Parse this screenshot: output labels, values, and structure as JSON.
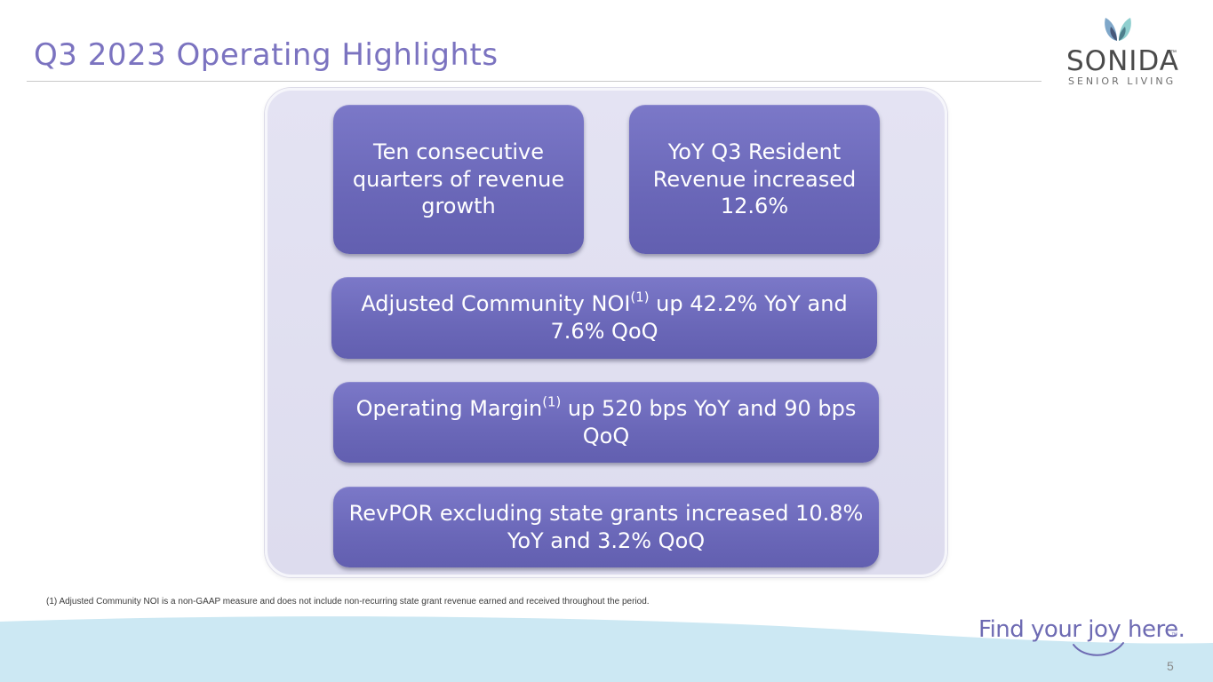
{
  "slide": {
    "title": "Q3 2023 Operating Highlights",
    "page_number": "5"
  },
  "logo": {
    "wordmark": "SONIDA",
    "trademark": "™",
    "subtitle": "SENIOR LIVING",
    "mark_icon": "butterfly-icon",
    "colors": {
      "left_wing": "#7fa7c9",
      "right_wing": "#8fcfcf",
      "body": "#3d4a6b"
    }
  },
  "highlights": {
    "box_a": "Ten consecutive quarters of revenue growth",
    "box_b": "YoY Q3 Resident Revenue increased 12.6%",
    "box_c": {
      "before": "Adjusted Community NOI",
      "sup": "(1)",
      "after": " up 42.2% YoY and 7.6%  QoQ"
    },
    "box_d": {
      "before": "Operating Margin",
      "sup": "(1)",
      "after": " up 520 bps YoY and 90 bps QoQ"
    },
    "box_e": "RevPOR excluding state grants increased 10.8% YoY and 3.2% QoQ"
  },
  "footnote": "(1) Adjusted Community NOI is a non-GAAP measure and does not include non-recurring state grant revenue earned and received throughout the period.",
  "tagline": {
    "text": "Find your joy here.",
    "trademark": "™"
  },
  "colors": {
    "title": "#7b73c0",
    "box_fill": "#6a67b8",
    "panel": "#e4e3f3",
    "wave": "#cce8f3",
    "tagline": "#6e6bb3"
  }
}
